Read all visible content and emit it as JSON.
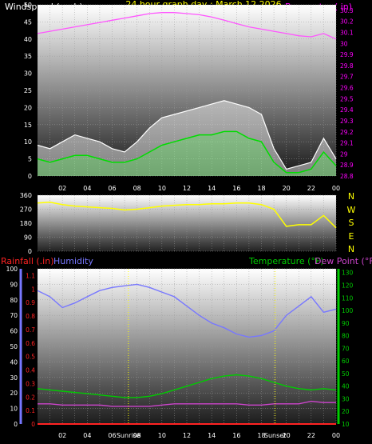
{
  "header": {
    "title": "24 hour graph day : March 12 2026",
    "wind_label": "Windspeed (mph)",
    "baro_label": "Barometer ( in)"
  },
  "colors": {
    "background": "#000000",
    "title": "#ffff00",
    "wind_label": "#ffffff",
    "baro_label": "#ff00ff",
    "gust": "#ffffff",
    "wind": "#00dd00",
    "barometer": "#ff55ff",
    "direction": "#ffff00",
    "rain": "#ff2222",
    "humidity": "#7777ff",
    "temperature": "#00cc00",
    "dewpoint": "#cc44cc",
    "compass": "#ffff00",
    "marker": "#ffff00"
  },
  "x_axis": {
    "ticks": [
      "02",
      "04",
      "06",
      "08",
      "10",
      "12",
      "14",
      "16",
      "18",
      "20",
      "22",
      "00"
    ],
    "sunrise_label": "Sunrise",
    "sunset_label": "Sunset"
  },
  "compass": [
    "N",
    "W",
    "S",
    "E",
    "N"
  ],
  "bottom_labels": {
    "rain": "Rainfall (.in)",
    "humidity": "Humidity",
    "temperature": "Temperature (°F)",
    "dewpoint": "Dew Point (°F)"
  },
  "chart_data": [
    {
      "type": "line",
      "title": "Windspeed (mph)",
      "y_left_ticks": [
        "0",
        "5",
        "10",
        "15",
        "20",
        "25",
        "30",
        "35",
        "40",
        "45",
        "50"
      ],
      "ylim_left": [
        0,
        50
      ],
      "y_right_ticks": [
        "28.8",
        "28.9",
        "29",
        "29.1",
        "29.2",
        "29.3",
        "29.4",
        "29.5",
        "29.6",
        "29.7",
        "29.8",
        "29.9",
        "30",
        "30.1",
        "30.2",
        "30.3"
      ],
      "ylim_right": [
        28.8,
        30.35
      ],
      "x": [
        0,
        1,
        2,
        3,
        4,
        5,
        6,
        7,
        8,
        9,
        10,
        11,
        12,
        13,
        14,
        15,
        16,
        17,
        18,
        19,
        20,
        21,
        22,
        23,
        24
      ],
      "series": [
        {
          "name": "Gust",
          "axis": "left",
          "values": [
            9,
            8,
            10,
            12,
            11,
            10,
            8,
            7,
            10,
            14,
            17,
            18,
            19,
            20,
            21,
            22,
            21,
            20,
            18,
            8,
            2,
            3,
            4,
            11,
            5
          ]
        },
        {
          "name": "Wind",
          "axis": "left",
          "values": [
            5,
            4,
            5,
            6,
            6,
            5,
            4,
            4,
            5,
            7,
            9,
            10,
            11,
            12,
            12,
            13,
            13,
            11,
            10,
            4,
            1,
            1,
            2,
            7,
            3
          ]
        },
        {
          "name": "Barometer",
          "axis": "right",
          "values": [
            30.09,
            30.11,
            30.13,
            30.15,
            30.17,
            30.19,
            30.21,
            30.23,
            30.25,
            30.27,
            30.28,
            30.28,
            30.27,
            30.26,
            30.24,
            30.21,
            30.18,
            30.15,
            30.13,
            30.11,
            30.09,
            30.07,
            30.06,
            30.09,
            30.04
          ]
        }
      ]
    },
    {
      "type": "line",
      "title": "Wind Direction",
      "y_left_ticks": [
        "0",
        "90",
        "180",
        "270",
        "360"
      ],
      "ylim_left": [
        0,
        360
      ],
      "x": [
        0,
        1,
        2,
        3,
        4,
        5,
        6,
        7,
        8,
        9,
        10,
        11,
        12,
        13,
        14,
        15,
        16,
        17,
        18,
        19,
        20,
        21,
        22,
        23,
        24
      ],
      "series": [
        {
          "name": "Direction",
          "values": [
            310,
            315,
            300,
            290,
            285,
            280,
            275,
            265,
            270,
            280,
            290,
            295,
            300,
            300,
            305,
            305,
            310,
            310,
            300,
            270,
            160,
            170,
            170,
            230,
            150
          ]
        }
      ]
    },
    {
      "type": "line",
      "title": "",
      "y_rain_ticks": [
        "0",
        "0.1",
        "0.2",
        "0.3",
        "0.4",
        "0.5",
        "0.6",
        "0.7",
        "0.8",
        "0.9",
        "1",
        "1.1"
      ],
      "ylim_rain": [
        0,
        1.15
      ],
      "y_humidity_ticks": [
        "0",
        "10",
        "20",
        "30",
        "40",
        "50",
        "60",
        "70",
        "80",
        "90",
        "100"
      ],
      "ylim_humidity": [
        0,
        100
      ],
      "y_temp_ticks": [
        "10",
        "20",
        "30",
        "40",
        "50",
        "60",
        "70",
        "80",
        "90",
        "100",
        "110",
        "120",
        "130"
      ],
      "ylim_temp": [
        10,
        133
      ],
      "x": [
        0,
        1,
        2,
        3,
        4,
        5,
        6,
        7,
        8,
        9,
        10,
        11,
        12,
        13,
        14,
        15,
        16,
        17,
        18,
        19,
        20,
        21,
        22,
        23,
        24
      ],
      "series": [
        {
          "name": "Rainfall",
          "axis": "rain",
          "values": [
            0,
            0,
            0,
            0,
            0,
            0,
            0,
            0,
            0,
            0,
            0,
            0,
            0,
            0,
            0,
            0,
            0,
            0,
            0,
            0,
            0,
            0,
            0,
            0,
            0
          ]
        },
        {
          "name": "Humidity",
          "axis": "humidity",
          "values": [
            86,
            82,
            75,
            78,
            82,
            86,
            88,
            89,
            90,
            88,
            85,
            82,
            76,
            70,
            65,
            62,
            58,
            56,
            57,
            60,
            70,
            76,
            82,
            72,
            74
          ]
        },
        {
          "name": "Temperature",
          "axis": "temp",
          "values": [
            38,
            37,
            36,
            35,
            34,
            33,
            32,
            31,
            31,
            32,
            34,
            37,
            40,
            43,
            46,
            48,
            49,
            48,
            46,
            43,
            40,
            38,
            37,
            38,
            37
          ]
        },
        {
          "name": "Dew Point",
          "axis": "temp",
          "values": [
            26,
            26,
            25,
            25,
            25,
            25,
            24,
            24,
            24,
            24,
            25,
            26,
            26,
            26,
            26,
            26,
            26,
            25,
            25,
            26,
            26,
            26,
            28,
            27,
            27
          ]
        }
      ],
      "markers": {
        "sunrise_hour": 7.3,
        "sunset_hour": 19.1
      }
    }
  ]
}
